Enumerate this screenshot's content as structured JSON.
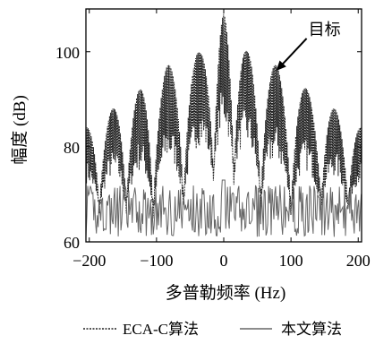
{
  "chart_data": {
    "type": "line",
    "xlabel": "多普勒频率 (Hz)",
    "ylabel": "幅度 (dB)",
    "xlim": [
      -205,
      205
    ],
    "ylim": [
      60,
      109
    ],
    "xticks": [
      -200,
      -100,
      0,
      100,
      200
    ],
    "xtick_labels": [
      "−200",
      "−100",
      "0",
      "100",
      "200"
    ],
    "yticks": [
      60,
      80,
      100
    ],
    "ytick_labels": [
      "60",
      "80",
      "100"
    ],
    "grid": false,
    "legend": {
      "position": "bottom"
    },
    "annotations": [
      {
        "text": "目标",
        "arrow_to": {
          "x": 78,
          "y": 96
        }
      }
    ],
    "series": [
      {
        "name": "ECA-C算法",
        "style": "dashed",
        "color": "#222222",
        "envelope_peaks": [
          {
            "x": -205,
            "y": 84
          },
          {
            "x": -165,
            "y": 88
          },
          {
            "x": -125,
            "y": 92
          },
          {
            "x": -85,
            "y": 97
          },
          {
            "x": -35,
            "y": 100
          },
          {
            "x": 0,
            "y": 108
          },
          {
            "x": 35,
            "y": 100
          },
          {
            "x": 80,
            "y": 97
          },
          {
            "x": 125,
            "y": 92
          },
          {
            "x": 165,
            "y": 88
          },
          {
            "x": 205,
            "y": 84
          }
        ],
        "envelope_nulls": [
          {
            "x": -185,
            "y": 69
          },
          {
            "x": -145,
            "y": 69
          },
          {
            "x": -105,
            "y": 68
          },
          {
            "x": -60,
            "y": 70
          },
          {
            "x": -15,
            "y": 75
          },
          {
            "x": 15,
            "y": 75
          },
          {
            "x": 55,
            "y": 70
          },
          {
            "x": 100,
            "y": 68
          },
          {
            "x": 145,
            "y": 69
          },
          {
            "x": 185,
            "y": 69
          }
        ]
      },
      {
        "name": "本文算法",
        "style": "solid",
        "color": "#666666",
        "noise_floor_range": [
          61,
          72
        ],
        "peak": {
          "x": 0,
          "y": 73
        }
      }
    ]
  }
}
